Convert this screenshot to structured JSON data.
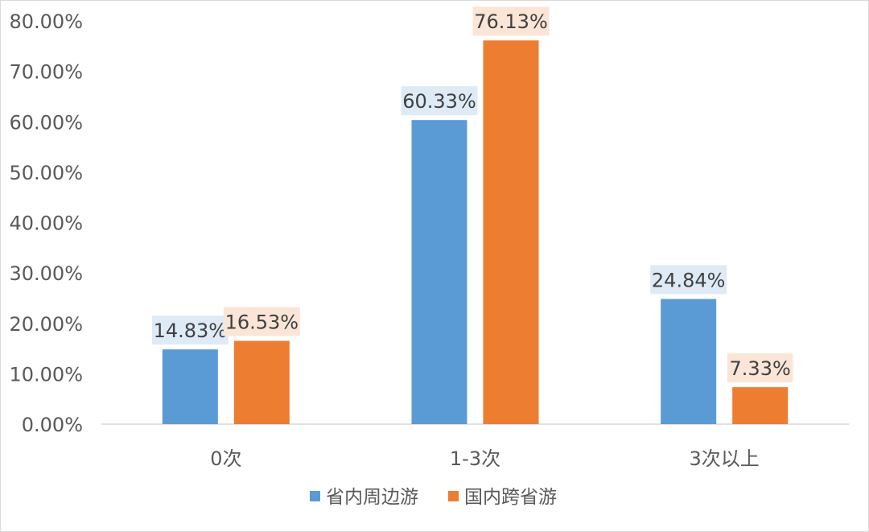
{
  "chart_data": {
    "type": "bar",
    "categories": [
      "0次",
      "1-3次",
      "3次以上"
    ],
    "series": [
      {
        "name": "省内周边游",
        "values": [
          14.83,
          60.33,
          24.84
        ],
        "labels": [
          "14.83%",
          "60.33%",
          "24.84%"
        ],
        "color": "#5b9bd5",
        "label_bg": "#deebf7"
      },
      {
        "name": "国内跨省游",
        "values": [
          16.53,
          76.13,
          7.33
        ],
        "labels": [
          "16.53%",
          "76.13%",
          "7.33%"
        ],
        "color": "#ed7d31",
        "label_bg": "#fbe5d6"
      }
    ],
    "ylim": [
      0,
      80
    ],
    "yticks": [
      "0.00%",
      "10.00%",
      "20.00%",
      "30.00%",
      "40.00%",
      "50.00%",
      "60.00%",
      "70.00%",
      "80.00%"
    ],
    "grid": false,
    "legend_position": "bottom"
  }
}
